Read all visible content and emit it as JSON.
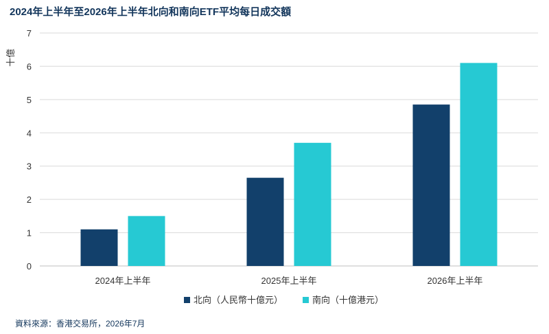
{
  "title": "2024年上半年至2026年上半年北向和南向ETF平均每日成交額",
  "source": "資料來源：香港交易所，2026年7月",
  "chart_data": {
    "type": "bar",
    "title": "2024年上半年至2026年上半年北向和南向ETF平均每日成交額",
    "categories": [
      "2024年上半年",
      "2025年上半年",
      "2026年上半年"
    ],
    "series": [
      {
        "name": "北向（人民幣十億元）",
        "color": "#12406b",
        "values": [
          1.1,
          2.65,
          4.85
        ]
      },
      {
        "name": "南向（十億港元）",
        "color": "#26c9d3",
        "values": [
          1.5,
          3.7,
          6.1
        ]
      }
    ],
    "ylabel": "十億",
    "xlabel": "",
    "ylim": [
      0,
      7
    ],
    "yticks": [
      0,
      1,
      2,
      3,
      4,
      5,
      6,
      7
    ],
    "grid": true,
    "legend": "bottom-center"
  }
}
